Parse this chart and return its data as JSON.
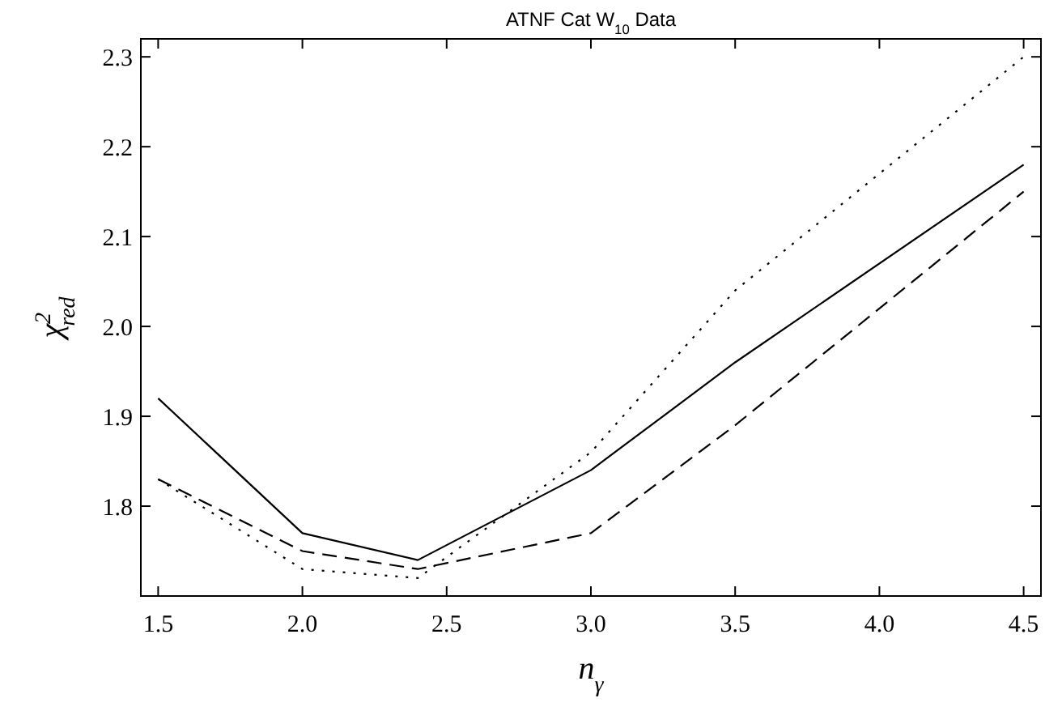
{
  "chart_data": {
    "type": "line",
    "title": "ATNF Cat W$_{10}$ Data",
    "xlabel": "n$_{γ}$",
    "ylabel": "χ$^{2}$$_{red}$",
    "xlim": [
      1.44,
      4.56
    ],
    "ylim": [
      1.7,
      2.32
    ],
    "xticks": [
      {
        "value": 1.5,
        "label": "1.5"
      },
      {
        "value": 2,
        "label": "2.0"
      },
      {
        "value": 2.5,
        "label": "2.5"
      },
      {
        "value": 3,
        "label": "3.0"
      },
      {
        "value": 3.5,
        "label": "3.5"
      },
      {
        "value": 4,
        "label": "4.0"
      },
      {
        "value": 4.5,
        "label": "4.5"
      }
    ],
    "yticks": [
      1.8,
      1.9,
      {
        "value": 2,
        "label": "2.0"
      },
      2.1,
      2.2,
      2.3
    ],
    "grid": false,
    "series": [
      {
        "x": [
          1.5,
          2.0,
          2.4,
          3.0,
          3.5,
          4.5
        ],
        "values": [
          1.92,
          1.77,
          1.74,
          1.84,
          1.96,
          2.18
        ],
        "color": "#000000",
        "line_style": "solid"
      },
      {
        "x": [
          1.5,
          2.0,
          2.4,
          3.0,
          3.5,
          4.5
        ],
        "values": [
          1.83,
          1.75,
          1.73,
          1.77,
          1.89,
          2.15
        ],
        "color": "#000000",
        "line_style": "dashed"
      },
      {
        "x": [
          1.5,
          2.0,
          2.4,
          3.0,
          3.5,
          4.5
        ],
        "values": [
          1.83,
          1.73,
          1.72,
          1.86,
          2.04,
          2.3
        ],
        "color": "#000000",
        "line_style": "dotted"
      }
    ]
  }
}
